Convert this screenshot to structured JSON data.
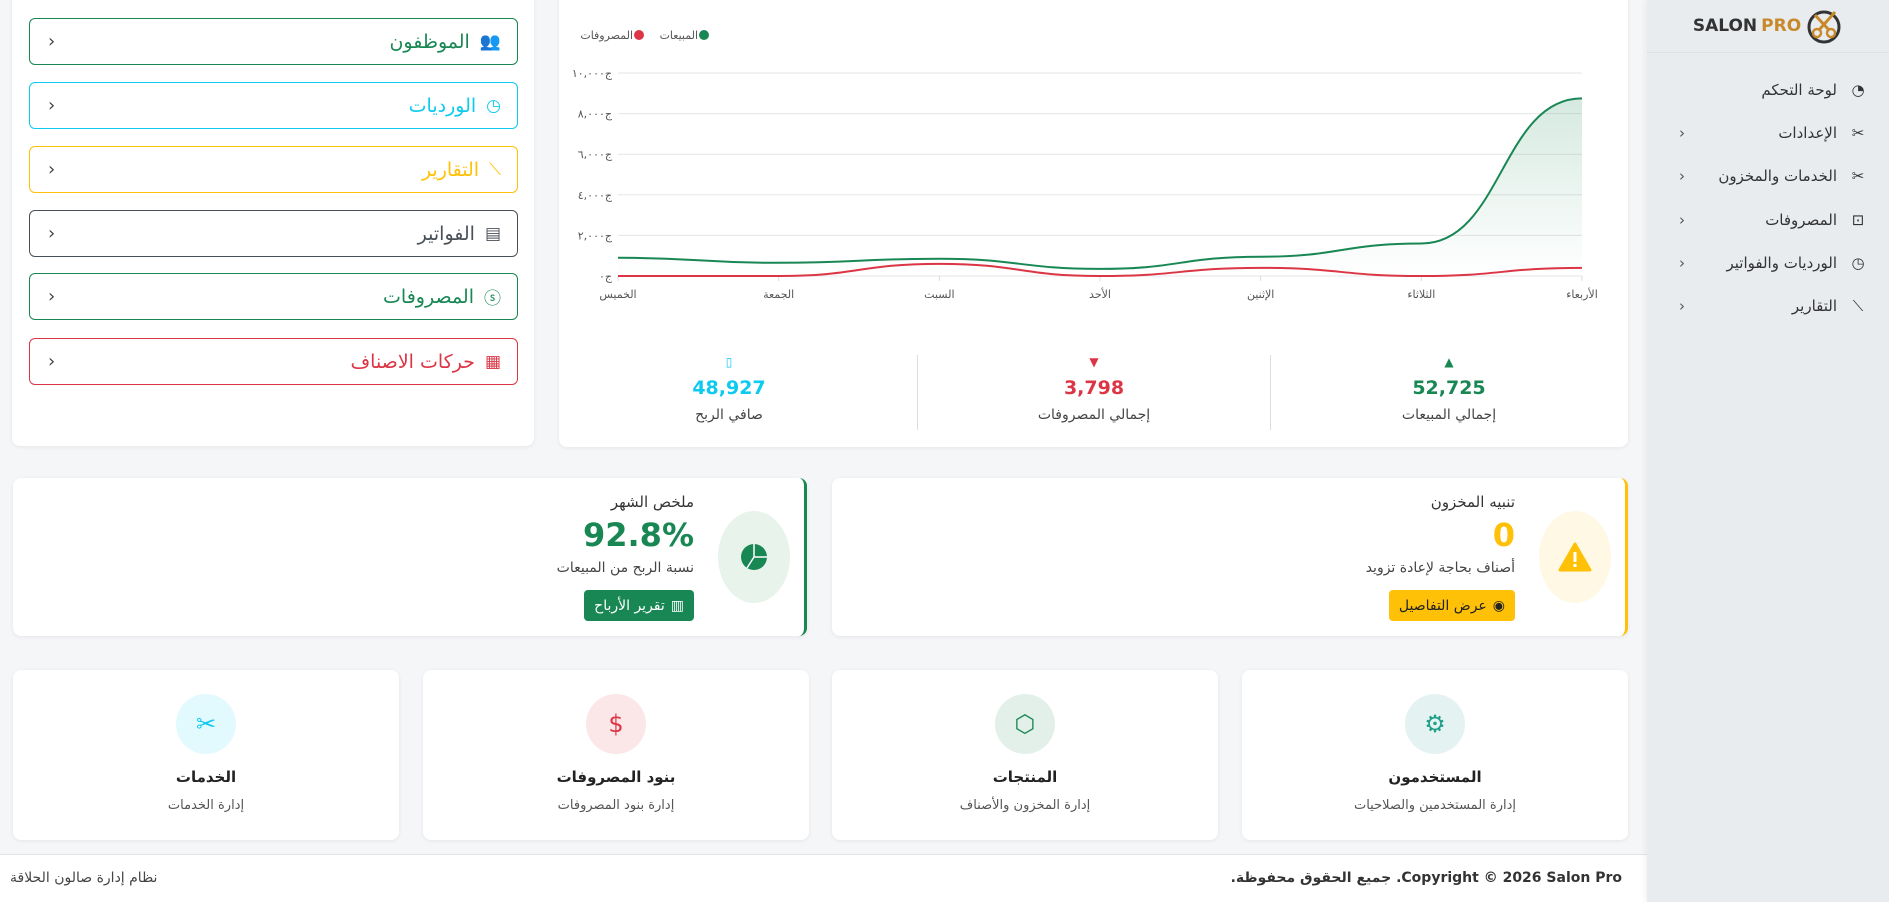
{
  "sidebar": {
    "logo": {
      "text1": "SALON",
      "text2": "PRO"
    },
    "items": [
      {
        "label": "لوحة التحكم",
        "icon": "dashboard-gauge-icon",
        "has_chevron": false
      },
      {
        "label": "الإعدادات",
        "icon": "tools-icon",
        "has_chevron": true
      },
      {
        "label": "الخدمات والمخزون",
        "icon": "scissors-icon",
        "has_chevron": true
      },
      {
        "label": "المصروفات",
        "icon": "cash-coin-icon",
        "has_chevron": true
      },
      {
        "label": "الورديات والفواتير",
        "icon": "clock-icon",
        "has_chevron": true
      },
      {
        "label": "التقارير",
        "icon": "graph-up-icon",
        "has_chevron": true
      }
    ]
  },
  "quick_links": [
    {
      "label": "الموظفون",
      "icon": "people-icon",
      "color": "#198754"
    },
    {
      "label": "الورديات",
      "icon": "clock-icon",
      "color": "#0dcaf0"
    },
    {
      "label": "التقارير",
      "icon": "graph-up-icon",
      "color": "#ffc107"
    },
    {
      "label": "الفواتير",
      "icon": "receipt-icon",
      "color": "#495057"
    },
    {
      "label": "المصروفات",
      "icon": "coin-icon",
      "color": "#198754"
    },
    {
      "label": "حركات الاصناف",
      "icon": "clipboard-data-icon",
      "color": "#dc3545"
    }
  ],
  "chart_data": {
    "type": "line",
    "categories": [
      "الخميس",
      "الجمعة",
      "السبت",
      "الأحد",
      "الإثنين",
      "الثلاثاء",
      "الأربعاء"
    ],
    "series": [
      {
        "name": "المبيعات",
        "color": "#198754",
        "values": [
          900,
          650,
          850,
          350,
          950,
          1600,
          8750
        ]
      },
      {
        "name": "المصروفات",
        "color": "#dc3545",
        "values": [
          0,
          0,
          600,
          0,
          400,
          0,
          400
        ]
      }
    ],
    "ylim": [
      0,
      10000
    ],
    "yticks": [
      "ج٠",
      "ج٢,٠٠٠",
      "ج٤,٠٠٠",
      "ج٦,٠٠٠",
      "ج٨,٠٠٠",
      "ج١٠,٠٠٠"
    ],
    "grid": true,
    "legend": "top-left"
  },
  "stats": [
    {
      "label": "إجمالي المبيعات",
      "value": "52,725",
      "color": "#198754",
      "icon": "caret-up-icon"
    },
    {
      "label": "إجمالي المصروفات",
      "value": "3,798",
      "color": "#dc3545",
      "icon": "caret-down-icon"
    },
    {
      "label": "صافي الربح",
      "value": "48,927",
      "color": "#0dcaf0",
      "icon": "wallet-icon"
    }
  ],
  "stock_alert": {
    "title": "تنبيه المخزون",
    "value": "0",
    "subtitle": "أصناف بحاجة لإعادة تزويد",
    "button": "عرض التفاصيل",
    "color": "#ffc107"
  },
  "month_summary": {
    "title": "ملخص الشهر",
    "value": "92.8%",
    "subtitle": "نسبة الربح من المبيعات",
    "button": "تقرير الأرباح",
    "color": "#198754"
  },
  "modules": [
    {
      "title": "المستخدمون",
      "subtitle": "إدارة المستخدمين والصلاحيات",
      "icon": "person-gear-icon",
      "color": "#20a08a"
    },
    {
      "title": "المنتجات",
      "subtitle": "إدارة المخزون والأصناف",
      "icon": "box-icon",
      "color": "#198754"
    },
    {
      "title": "بنود المصروفات",
      "subtitle": "إدارة بنود المصروفات",
      "icon": "cash-icon",
      "color": "#dc3545"
    },
    {
      "title": "الخدمات",
      "subtitle": "إدارة الخدمات",
      "icon": "scissors-icon",
      "color": "#0dcaf0"
    }
  ],
  "footer": {
    "copyright": "Copyright © 2026 Salon Pro. جميع الحقوق محفوظة.",
    "system": "نظام إدارة صالون الحلاقة"
  }
}
